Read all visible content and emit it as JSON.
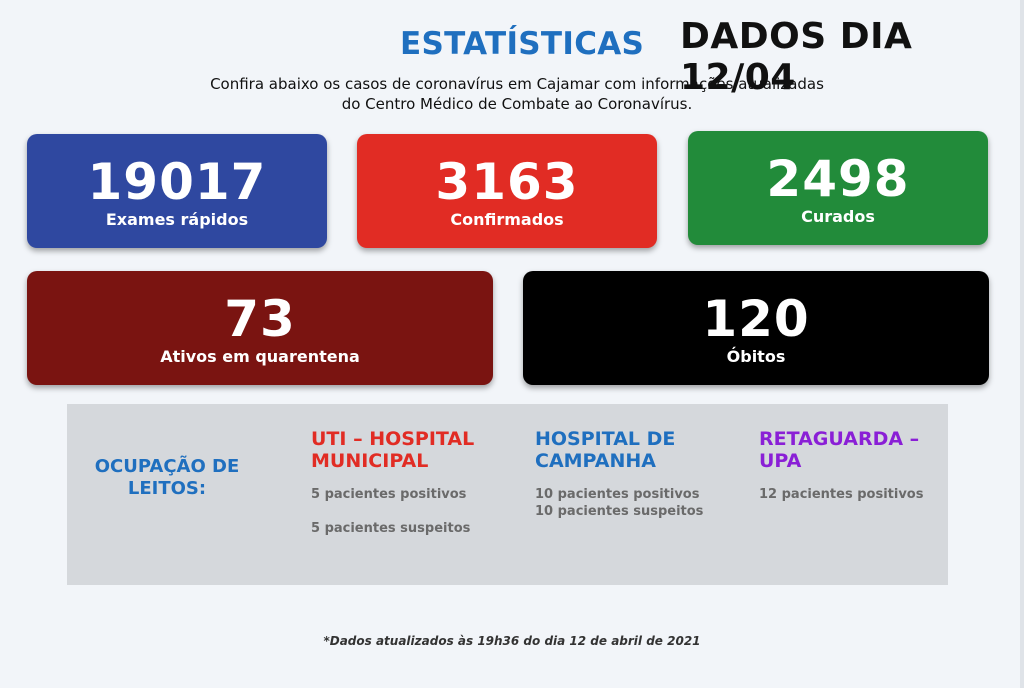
{
  "header": {
    "title": "ESTATÍSTICAS",
    "date_title": "DADOS DIA 12/04",
    "subtitle_line1": "Confira abaixo os casos de coronavírus em Cajamar com informações atualizadas",
    "subtitle_line2": "do Centro Médico de Combate ao Coronavírus."
  },
  "cards": [
    {
      "value": "19017",
      "label": "Exames rápidos"
    },
    {
      "value": "3163",
      "label": "Confirmados"
    },
    {
      "value": "2498",
      "label": "Curados"
    },
    {
      "value": "73",
      "label": "Ativos em quarentena"
    },
    {
      "value": "120",
      "label": "Óbitos"
    }
  ],
  "beds": {
    "label": "OCUPAÇÃO DE LEITOS:",
    "columns": [
      {
        "title": "UTI – HOSPITAL MUNICIPAL",
        "line1": "5 pacientes positivos",
        "line2": "5 pacientes suspeitos"
      },
      {
        "title": "HOSPITAL DE CAMPANHA",
        "line1": "10 pacientes positivos",
        "line2": "10 pacientes suspeitos"
      },
      {
        "title": "RETAGUARDA – UPA",
        "line1": "12 pacientes positivos"
      }
    ]
  },
  "footer": {
    "note": "*Dados atualizados às 19h36 do dia 12 de abril de 2021"
  },
  "colors": {
    "title_blue": "#1f6fbf",
    "card_exames": "#2f48a0",
    "card_confirmados": "#e12c24",
    "card_curados": "#228b3a",
    "card_ativos": "#7a1411",
    "card_obitos": "#000000",
    "retaguarda_purple": "#8a1fd6"
  }
}
